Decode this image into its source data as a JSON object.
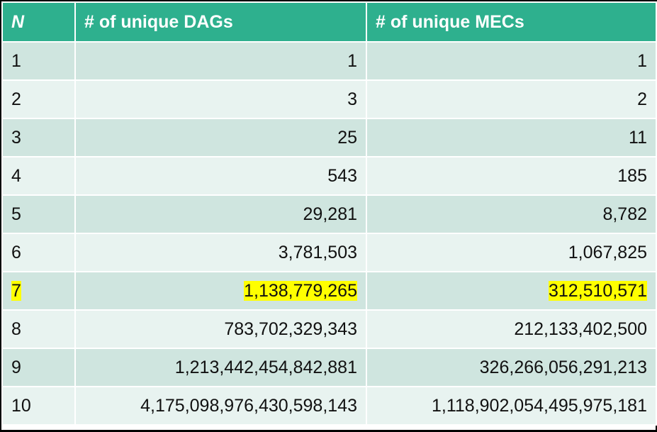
{
  "headers": [
    "N",
    "# of unique DAGs",
    "# of unique MECs"
  ],
  "rows": [
    {
      "n": "1",
      "dags": "1",
      "mecs": "1"
    },
    {
      "n": "2",
      "dags": "3",
      "mecs": "2"
    },
    {
      "n": "3",
      "dags": "25",
      "mecs": "11"
    },
    {
      "n": "4",
      "dags": "543",
      "mecs": "185"
    },
    {
      "n": "5",
      "dags": "29,281",
      "mecs": "8,782"
    },
    {
      "n": "6",
      "dags": "3,781,503",
      "mecs": "1,067,825"
    },
    {
      "n": "7",
      "dags": "1,138,779,265",
      "mecs": "312,510,571"
    },
    {
      "n": "8",
      "dags": "783,702,329,343",
      "mecs": "212,133,402,500"
    },
    {
      "n": "9",
      "dags": "1,213,442,454,842,881",
      "mecs": "326,266,056,291,213"
    },
    {
      "n": "10",
      "dags": "4,175,098,976,430,598,143",
      "mecs": "1,118,902,054,495,975,181"
    }
  ],
  "colors": {
    "header_bg": "#2eb08e",
    "row_odd_bg": "#cfe5df",
    "row_even_bg": "#e8f3f0",
    "highlight": "#ffff00"
  },
  "highlighted_row_n": "7"
}
